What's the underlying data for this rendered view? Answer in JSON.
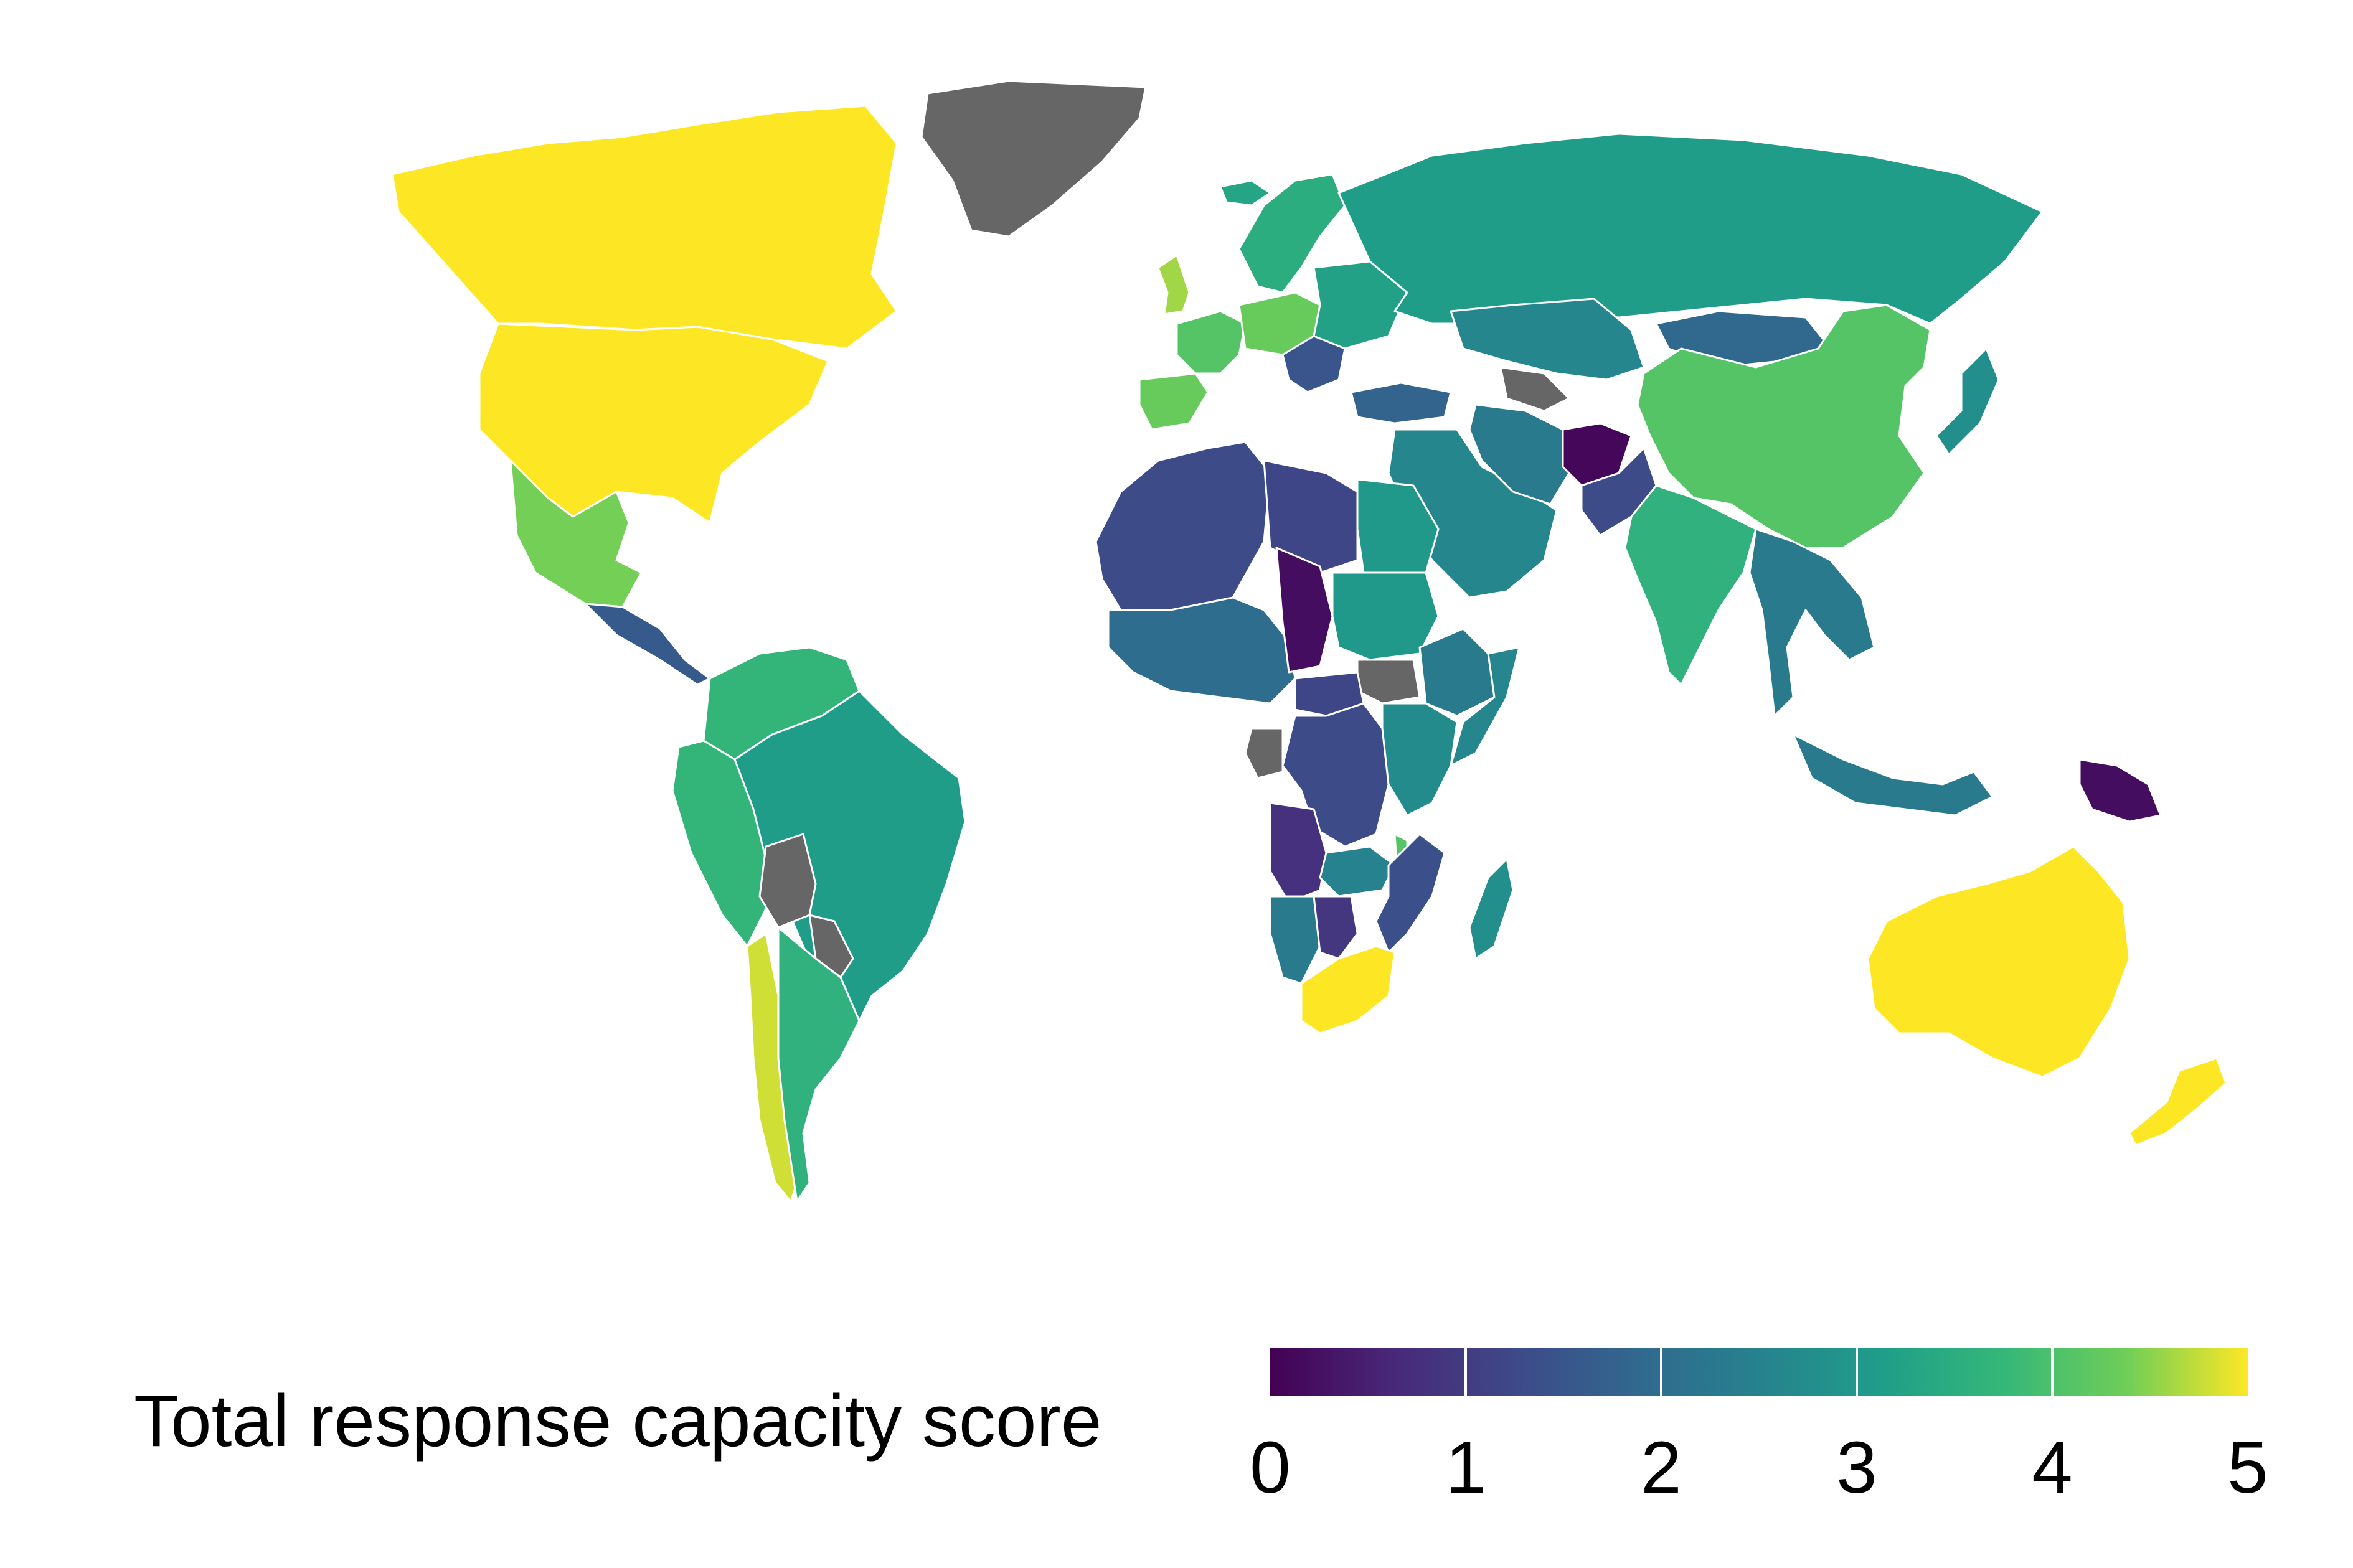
{
  "legend": {
    "title": "Total response capacity score",
    "min": 0,
    "max": 5,
    "ticks": [
      "0",
      "1",
      "2",
      "3",
      "4",
      "5"
    ],
    "palette": "viridis",
    "no_data_color": "#666666"
  },
  "map": {
    "type": "choropleth",
    "projection": "Robinson",
    "region_scores": [
      {
        "name": "Greenland",
        "score": null
      },
      {
        "name": "Canada",
        "score": 5.0
      },
      {
        "name": "USA",
        "score": 5.0
      },
      {
        "name": "Mexico",
        "score": 4.4
      },
      {
        "name": "Central America",
        "score": 1.6
      },
      {
        "name": "Colombia / Venezuela",
        "score": 3.7
      },
      {
        "name": "Peru / Ecuador",
        "score": 3.7
      },
      {
        "name": "Brazil",
        "score": 3.1
      },
      {
        "name": "Bolivia",
        "score": null
      },
      {
        "name": "Paraguay",
        "score": null
      },
      {
        "name": "Chile",
        "score": 4.8
      },
      {
        "name": "Argentina",
        "score": 3.6
      },
      {
        "name": "Iceland",
        "score": 3.3
      },
      {
        "name": "Scandinavia",
        "score": 3.5
      },
      {
        "name": "UK",
        "score": 4.6
      },
      {
        "name": "Spain",
        "score": 4.3
      },
      {
        "name": "Western Europe",
        "score": 4.1
      },
      {
        "name": "Central Europe",
        "score": 4.3
      },
      {
        "name": "Eastern Europe",
        "score": 3.2
      },
      {
        "name": "Balkans",
        "score": 1.5
      },
      {
        "name": "Russia",
        "score": 3.1
      },
      {
        "name": "Kazakhstan",
        "score": 2.6
      },
      {
        "name": "Mongolia",
        "score": 1.9
      },
      {
        "name": "China",
        "score": 4.1
      },
      {
        "name": "Japan",
        "score": 2.8
      },
      {
        "name": "Turkey",
        "score": 1.8
      },
      {
        "name": "Turkmenistan",
        "score": null
      },
      {
        "name": "Middle East",
        "score": 2.6
      },
      {
        "name": "Iran",
        "score": 2.3
      },
      {
        "name": "Afghanistan",
        "score": 0.1
      },
      {
        "name": "Pakistan",
        "score": 1.3
      },
      {
        "name": "India",
        "score": 3.6
      },
      {
        "name": "Southeast Asia",
        "score": 2.3
      },
      {
        "name": "Indonesia",
        "score": 2.3
      },
      {
        "name": "Papua New Guinea",
        "score": 0.2
      },
      {
        "name": "Australia",
        "score": 5.0
      },
      {
        "name": "New Zealand",
        "score": 5.0
      },
      {
        "name": "Northwest Africa",
        "score": 1.3
      },
      {
        "name": "Libya",
        "score": 1.2
      },
      {
        "name": "Egypt",
        "score": 3.0
      },
      {
        "name": "West Africa",
        "score": 2.0
      },
      {
        "name": "Chad",
        "score": 0.2
      },
      {
        "name": "Sudan",
        "score": 3.0
      },
      {
        "name": "South Sudan",
        "score": null
      },
      {
        "name": "Ethiopia",
        "score": 2.3
      },
      {
        "name": "Somalia",
        "score": 2.6
      },
      {
        "name": "Central African Republic",
        "score": 1.2
      },
      {
        "name": "DR Congo",
        "score": 1.3
      },
      {
        "name": "Gabon",
        "score": null
      },
      {
        "name": "East Africa",
        "score": 2.7
      },
      {
        "name": "Angola",
        "score": 0.8
      },
      {
        "name": "Zambia",
        "score": 2.5
      },
      {
        "name": "Malawi",
        "score": 4.1
      },
      {
        "name": "Namibia",
        "score": 2.3
      },
      {
        "name": "Botswana",
        "score": 0.9
      },
      {
        "name": "Mozambique",
        "score": 1.4
      },
      {
        "name": "Madagascar",
        "score": 2.8
      },
      {
        "name": "South Africa",
        "score": 5.0
      }
    ]
  }
}
